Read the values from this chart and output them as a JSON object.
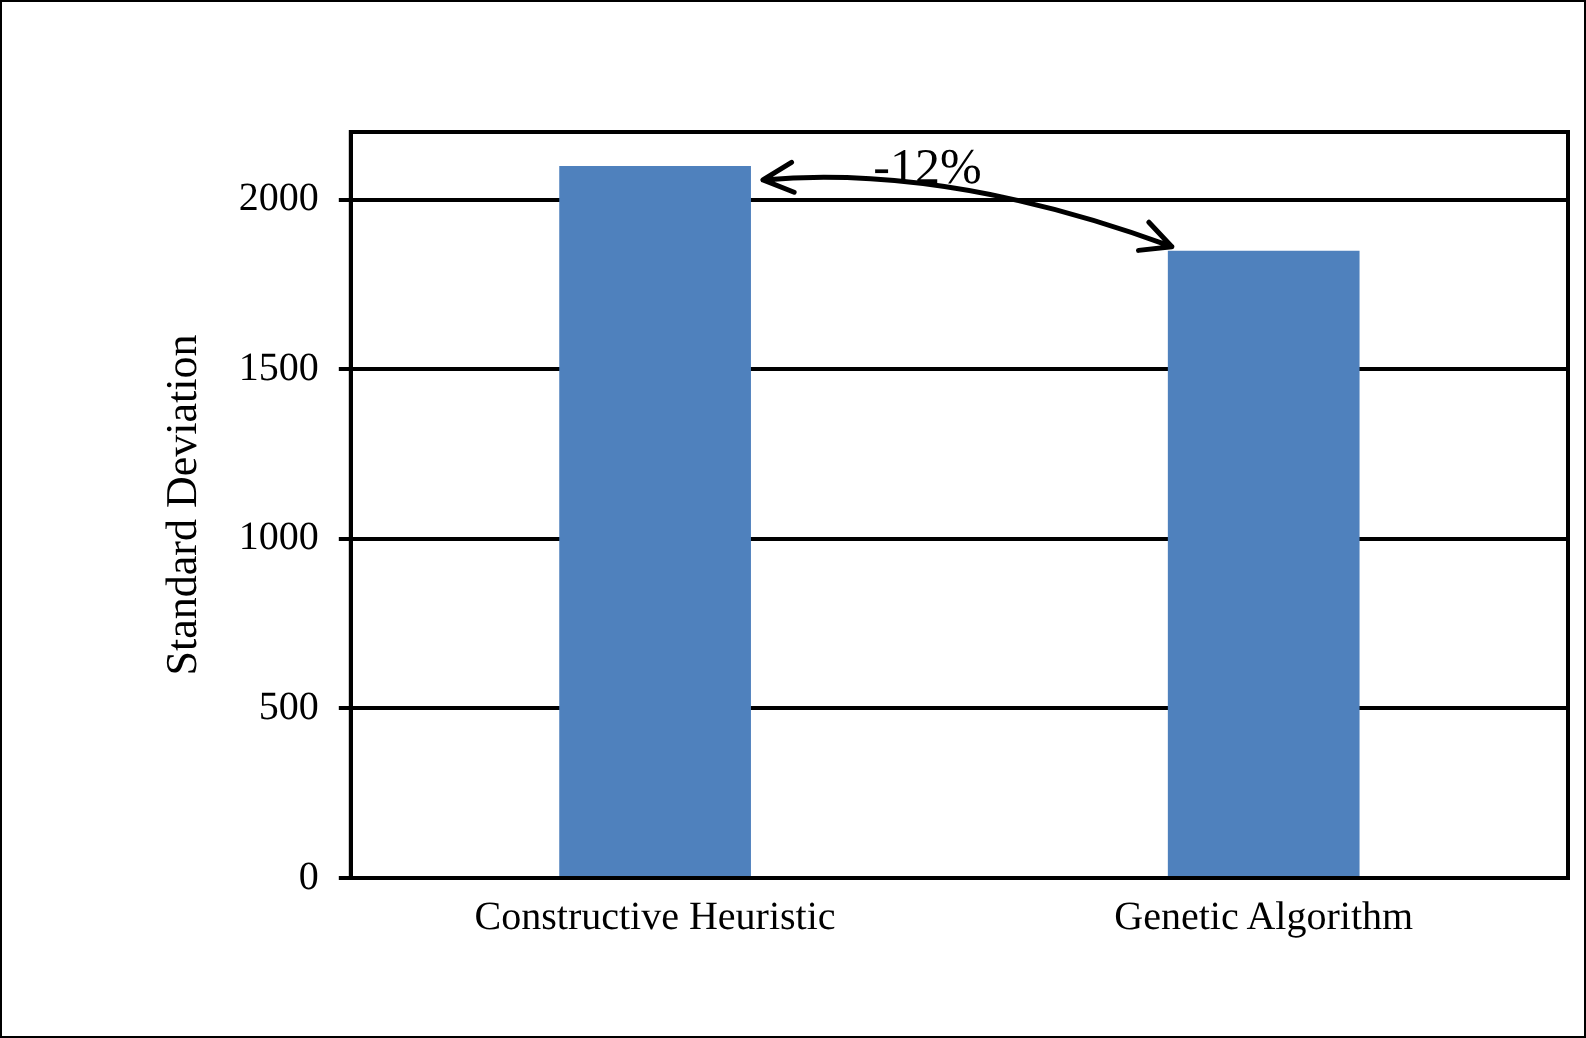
{
  "chart_data": {
    "type": "bar",
    "categories": [
      "Constructive Heuristic",
      "Genetic Algorithm"
    ],
    "values": [
      2100,
      1850
    ],
    "color": "#4f81bd",
    "ylabel": "Standard Deviation",
    "ylim": [
      0,
      2200
    ],
    "yticks": [
      0,
      500,
      1000,
      1500,
      2000
    ],
    "grid": "y",
    "annotations": [
      "-12%"
    ]
  }
}
